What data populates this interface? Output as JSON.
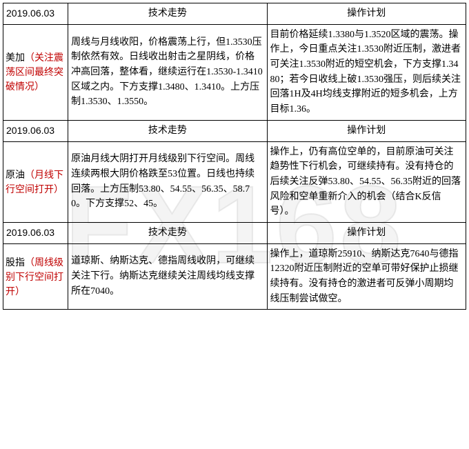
{
  "watermark": "FX168",
  "sections": [
    {
      "date": "2019.06.03",
      "col2_header": "技术走势",
      "col3_header": "操作计划",
      "label_black": "美加",
      "label_red": "（关注震荡区间最终突破情况）",
      "trend": "周线与月线收阳，价格震荡上行，但1.3530压制依然有效。日线收出射击之星阴线，价格冲高回落，整体看，继续运行在1.3530-1.3410区域之内。下方支撑1.3480、1.3410。上方压制1.3530、1.3550。",
      "plan": "目前价格延续1.3380与1.3520区域的震荡。操作上，今日重点关注1.3530附近压制，激进者可关注1.3530附近的短空机会，下方支撑1.3480；若今日收线上破1.3530强压，则后续关注回落1H及4H均线支撑附近的短多机会，上方目标1.36。"
    },
    {
      "date": "2019.06.03",
      "col2_header": "技术走势",
      "col3_header": "操作计划",
      "label_black": "原油",
      "label_red": "（月线下行空间打开）",
      "trend": "原油月线大阴打开月线级别下行空间。周线连续两根大阴价格跌至53位置。日线也持续回落。上方压制53.80、54.55、56.35、58.70。下方支撑52、45。",
      "plan": "操作上，仍有高位空单的，目前原油可关注趋势性下行机会，可继续持有。没有持仓的后续关注反弹53.80、54.55、56.35附近的回落风险和空单重新介入的机会（结合K反信号）。"
    },
    {
      "date": "2019.06.03",
      "col2_header": "技术走势",
      "col3_header": "操作计划",
      "label_black": "股指",
      "label_red": "（周线级别下行空间打开）",
      "trend": "道琼斯、纳斯达克、德指周线收阴，可继续关注下行。纳斯达克继续关注周线均线支撑所在7040。",
      "plan": "操作上，道琼斯25910、纳斯达克7640与德指12320附近压制附近的空单可带好保护止损继续持有。没有持仓的激进者可反弹小周期均线压制尝试做空。"
    }
  ]
}
